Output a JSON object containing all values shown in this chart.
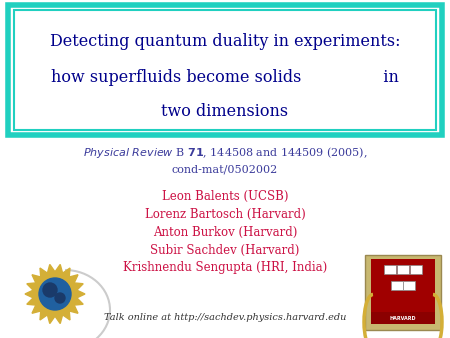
{
  "title_line1": "Detecting quantum duality in experiments:",
  "title_line2": "how superfluids become solids                in",
  "title_line3": "two dimensions",
  "title_color": "#00008B",
  "box_color_outer": "#20D0C0",
  "box_color_inner": "#20D0C0",
  "ref_italic": "Physical Review",
  "ref_rest": " B 71, 144508 and 144509 (2005),",
  "ref_line2": "cond-mat/0502002",
  "ref_color": "#3B3B9B",
  "authors": [
    "Leon Balents (UCSB)",
    "Lorenz Bartosch (Harvard)",
    "Anton Burkov (Harvard)",
    "Subir Sachdev (Harvard)",
    "Krishnendu Sengupta (HRI, India)"
  ],
  "author_color": "#CC1144",
  "talk_text": "Talk online at http://sachdev.physics.harvard.edu",
  "talk_color": "#333333",
  "bg_color": "#FFFFFF",
  "globe_gold": "#D4AF37",
  "globe_blue": "#2060A0",
  "globe_dark_blue": "#1A3A6A",
  "harvard_bg": "#C8B870",
  "harvard_red": "#A00000",
  "harvard_dark": "#5A3A00"
}
